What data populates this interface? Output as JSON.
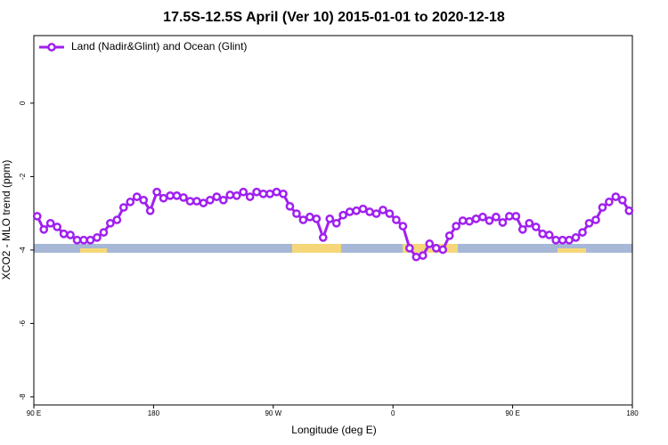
{
  "chart_data": {
    "type": "line",
    "title": "17.5S-12.5S April (Ver 10)   2015-01-01 to 2020-12-18",
    "x_label": "Longitude (deg E)",
    "y_label": "XCO2 - MLO trend (ppm)",
    "xlim": [
      90,
      540
    ],
    "ylim": [
      -8.22,
      1.84
    ],
    "xticks": [
      {
        "value": 90,
        "label": "90 E"
      },
      180,
      {
        "value": 270,
        "label": "90 W"
      },
      {
        "value": 360,
        "label": "0"
      },
      {
        "value": 450,
        "label": "90 E"
      },
      {
        "value": 540,
        "label": "180"
      }
    ],
    "yticks": [
      0,
      -2,
      -4,
      -6,
      -8
    ],
    "legend": "top-left",
    "x": [
      92.5,
      97.5,
      102.5,
      107.5,
      112.5,
      117.5,
      122.5,
      127.5,
      132.5,
      137.5,
      142.5,
      147.5,
      152.5,
      157.5,
      162.5,
      167.5,
      172.5,
      177.5,
      182.5,
      187.5,
      192.5,
      197.5,
      202.5,
      207.5,
      212.5,
      217.5,
      222.5,
      227.5,
      232.5,
      237.5,
      242.5,
      247.5,
      252.5,
      257.5,
      262.5,
      267.5,
      272.5,
      277.5,
      282.5,
      287.5,
      292.5,
      297.5,
      302.5,
      307.5,
      312.5,
      317.5,
      322.5,
      327.5,
      332.5,
      337.5,
      342.5,
      347.5,
      352.5,
      357.5,
      362.5,
      367.5,
      372.5,
      377.5,
      382.5,
      387.5,
      392.5,
      397.5,
      402.5,
      407.5,
      412.5,
      417.5,
      422.5,
      427.5,
      432.5,
      437.5,
      442.5,
      447.5,
      452.5,
      457.5,
      462.5,
      467.5,
      472.5,
      477.5,
      482.5,
      487.5,
      492.5,
      497.5,
      502.5,
      507.5,
      512.5,
      517.5,
      522.5,
      527.5,
      532.5,
      537.5
    ],
    "series": [
      {
        "name": "Land (Nadir&Glint) and Ocean (Glint)",
        "color": "#a020f0",
        "values": [
          -3.08,
          -3.44,
          -3.27,
          -3.37,
          -3.56,
          -3.59,
          -3.73,
          -3.73,
          -3.73,
          -3.66,
          -3.52,
          -3.27,
          -3.18,
          -2.84,
          -2.69,
          -2.55,
          -2.64,
          -2.93,
          -2.42,
          -2.59,
          -2.52,
          -2.52,
          -2.57,
          -2.67,
          -2.67,
          -2.72,
          -2.64,
          -2.55,
          -2.64,
          -2.5,
          -2.52,
          -2.42,
          -2.55,
          -2.42,
          -2.47,
          -2.47,
          -2.42,
          -2.47,
          -2.81,
          -3.01,
          -3.18,
          -3.1,
          -3.15,
          -3.66,
          -3.15,
          -3.27,
          -3.05,
          -2.96,
          -2.93,
          -2.88,
          -2.96,
          -3.01,
          -2.91,
          -3.01,
          -3.18,
          -3.35,
          -3.95,
          -4.19,
          -4.15,
          -3.83,
          -3.95,
          -3.99,
          -3.61,
          -3.35,
          -3.2,
          -3.22,
          -3.15,
          -3.1,
          -3.2,
          -3.1,
          -3.25,
          -3.08,
          -3.08,
          -3.44,
          -3.27,
          -3.37,
          -3.56,
          -3.59,
          -3.73,
          -3.73,
          -3.73,
          -3.66,
          -3.52,
          -3.27,
          -3.18,
          -2.84,
          -2.69,
          -2.55,
          -2.64,
          -2.93
        ]
      }
    ]
  }
}
